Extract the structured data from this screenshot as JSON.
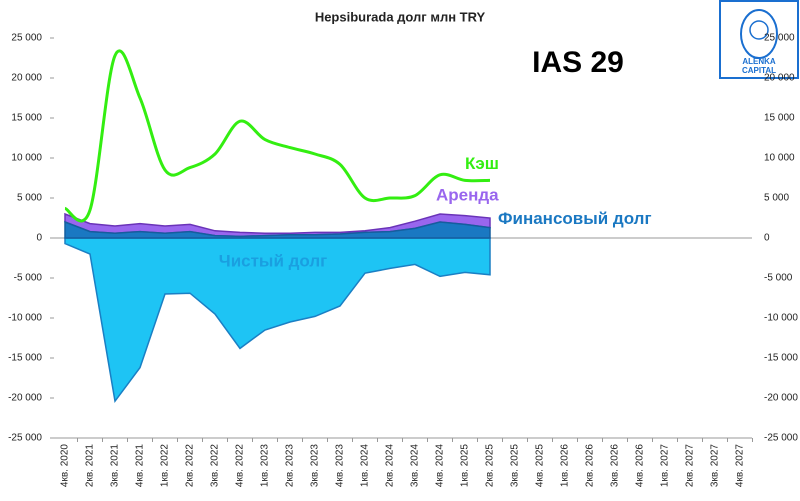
{
  "chart_data": {
    "type": "area-line",
    "title": "Hepsiburada долг млн TRY",
    "annotation": "IAS 29",
    "logo": [
      "ALЁNKA",
      "CAPITAL"
    ],
    "categories": [
      "4кв. 2020",
      "2кв. 2021",
      "3кв. 2021",
      "4кв. 2021",
      "1кв. 2022",
      "2кв. 2022",
      "3кв. 2022",
      "4кв. 2022",
      "1кв. 2023",
      "2кв. 2023",
      "3кв. 2023",
      "4кв. 2023",
      "1кв. 2024",
      "2кв. 2024",
      "3кв. 2024",
      "4кв. 2024",
      "1кв. 2025",
      "2кв. 2025",
      "3кв. 2025",
      "4кв. 2025",
      "1кв. 2026",
      "2кв. 2026",
      "3кв. 2026",
      "4кв. 2026",
      "1кв. 2027",
      "2кв. 2027",
      "3кв. 2027",
      "4кв. 2027"
    ],
    "ylim": [
      -25000,
      25000
    ],
    "yticks": [
      {
        "value": -25000,
        "label": "-25 000"
      },
      {
        "value": -20000,
        "label": "-20 000"
      },
      {
        "value": -15000,
        "label": "-15 000"
      },
      {
        "value": -10000,
        "label": "-10 000"
      },
      {
        "value": -5000,
        "label": "-5 000"
      },
      0,
      {
        "value": 5000,
        "label": "5 000"
      },
      {
        "value": 10000,
        "label": "10 000"
      },
      {
        "value": 15000,
        "label": "15 000"
      },
      {
        "value": 20000,
        "label": "20 000"
      },
      {
        "value": 25000,
        "label": "25 000"
      }
    ],
    "series": [
      {
        "name": "Чистый долг",
        "color": "#1ec4f4",
        "values": [
          -700,
          -2000,
          -20400,
          -16200,
          -7000,
          -6900,
          -9500,
          -13800,
          -11500,
          -10500,
          -9800,
          -8500,
          -4400,
          -3800,
          -3300,
          -4800,
          -4300,
          -4600,
          null,
          null,
          null,
          null,
          null,
          null,
          null,
          null,
          null,
          null
        ]
      },
      {
        "name": "Финансовый долг",
        "color": "#1a78c2",
        "values": [
          2000,
          800,
          600,
          800,
          600,
          800,
          300,
          200,
          300,
          400,
          400,
          500,
          700,
          800,
          1200,
          2000,
          1700,
          1300,
          null,
          null,
          null,
          null,
          null,
          null,
          null,
          null,
          null,
          null
        ]
      },
      {
        "name": "Аренда",
        "color": "#9966ee",
        "values": [
          1000,
          1000,
          900,
          1000,
          900,
          900,
          600,
          500,
          300,
          200,
          300,
          200,
          200,
          500,
          900,
          1000,
          1100,
          1200,
          null,
          null,
          null,
          null,
          null,
          null,
          null,
          null,
          null,
          null
        ]
      },
      {
        "name": "Кэш",
        "color": "#33ee11",
        "values": [
          3700,
          3500,
          22800,
          17500,
          8500,
          8800,
          10500,
          14600,
          12300,
          11300,
          10500,
          9200,
          5000,
          5000,
          5300,
          7900,
          7200,
          7200,
          null,
          null,
          null,
          null,
          null,
          null,
          null,
          null,
          null,
          null
        ]
      }
    ]
  }
}
